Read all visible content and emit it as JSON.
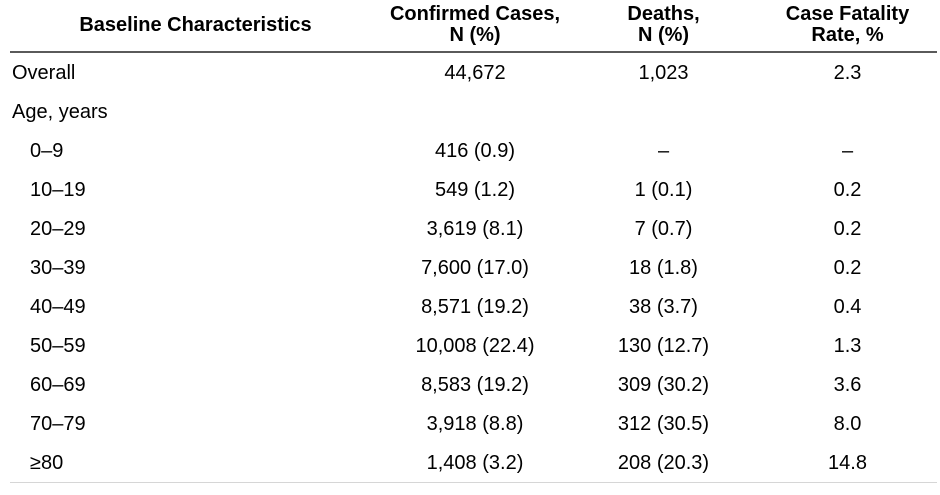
{
  "page": {
    "background_color": "#ffffff",
    "text_color": "#000000",
    "header_rule_color": "#5a5a5a",
    "bottom_rule_color": "#d6d6d6"
  },
  "table": {
    "columns": [
      {
        "label": "Baseline Characteristics"
      },
      {
        "label": "Confirmed Cases,\nN (%)"
      },
      {
        "label": "Deaths,\nN (%)"
      },
      {
        "label": "Case Fatality\nRate, %"
      }
    ],
    "rows": [
      {
        "label": "Overall",
        "confirmed": "44,672",
        "deaths": "1,023",
        "cfr": "2.3"
      },
      {
        "label": "Age, years",
        "confirmed": "",
        "deaths": "",
        "cfr": ""
      },
      {
        "label": "0–9",
        "confirmed": "416 (0.9)",
        "deaths": "–",
        "cfr": "–"
      },
      {
        "label": "10–19",
        "confirmed": "549 (1.2)",
        "deaths": "1 (0.1)",
        "cfr": "0.2"
      },
      {
        "label": "20–29",
        "confirmed": "3,619 (8.1)",
        "deaths": "7 (0.7)",
        "cfr": "0.2"
      },
      {
        "label": "30–39",
        "confirmed": "7,600 (17.0)",
        "deaths": "18 (1.8)",
        "cfr": "0.2"
      },
      {
        "label": "40–49",
        "confirmed": "8,571 (19.2)",
        "deaths": "38 (3.7)",
        "cfr": "0.4"
      },
      {
        "label": "50–59",
        "confirmed": "10,008 (22.4)",
        "deaths": "130 (12.7)",
        "cfr": "1.3"
      },
      {
        "label": "60–69",
        "confirmed": "8,583 (19.2)",
        "deaths": "309 (30.2)",
        "cfr": "3.6"
      },
      {
        "label": "70–79",
        "confirmed": "3,918 (8.8)",
        "deaths": "312 (30.5)",
        "cfr": "8.0"
      },
      {
        "label": "≥80",
        "confirmed": "1,408 (3.2)",
        "deaths": "208 (20.3)",
        "cfr": "14.8"
      }
    ]
  }
}
